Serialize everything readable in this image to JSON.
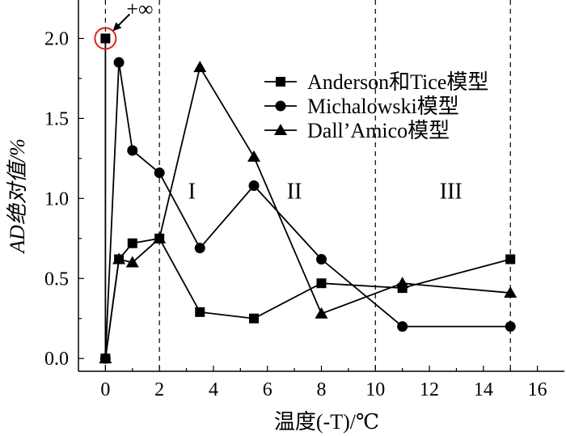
{
  "chart_data": {
    "type": "line",
    "xlabel": "温度(-T)/℃",
    "ylabel": "AD绝对值/%",
    "xlim": [
      -1,
      17
    ],
    "ylim": [
      -0.08,
      2.24
    ],
    "xticks": [
      "0",
      "2",
      "4",
      "6",
      "8",
      "10",
      "12",
      "14",
      "16"
    ],
    "yticks": [
      "0.0",
      "0.5",
      "1.0",
      "1.5",
      "2.0"
    ],
    "vlines": [
      0,
      2,
      10,
      15
    ],
    "regions": [
      {
        "label": "I",
        "x": 3.2,
        "y": 1.0
      },
      {
        "label": "II",
        "x": 7.0,
        "y": 1.0
      },
      {
        "label": "III",
        "x": 12.8,
        "y": 1.0
      }
    ],
    "annotation": {
      "text": "+∞",
      "x": 0,
      "y": 2.0
    },
    "legend_position": "top-right",
    "series": [
      {
        "name": "Anderson和Tice模型",
        "marker": "square",
        "x": [
          0,
          0,
          0.5,
          1,
          2,
          3.5,
          5.5,
          8,
          11,
          15
        ],
        "y": [
          2.0,
          0.0,
          0.62,
          0.72,
          0.75,
          0.29,
          0.25,
          0.47,
          0.44,
          0.62
        ]
      },
      {
        "name": "Michalowski模型",
        "marker": "circle",
        "x": [
          0,
          0.5,
          1,
          2,
          3.5,
          5.5,
          8,
          11,
          15
        ],
        "y": [
          0.0,
          1.85,
          1.3,
          1.16,
          0.69,
          1.08,
          0.62,
          0.2,
          0.2
        ]
      },
      {
        "name": "Dall’Amico模型",
        "marker": "triangle",
        "x": [
          0,
          0.5,
          1,
          2,
          3.5,
          5.5,
          8,
          11,
          15
        ],
        "y": [
          0.0,
          0.62,
          0.6,
          0.75,
          1.82,
          1.26,
          0.28,
          0.47,
          0.41
        ]
      }
    ]
  }
}
